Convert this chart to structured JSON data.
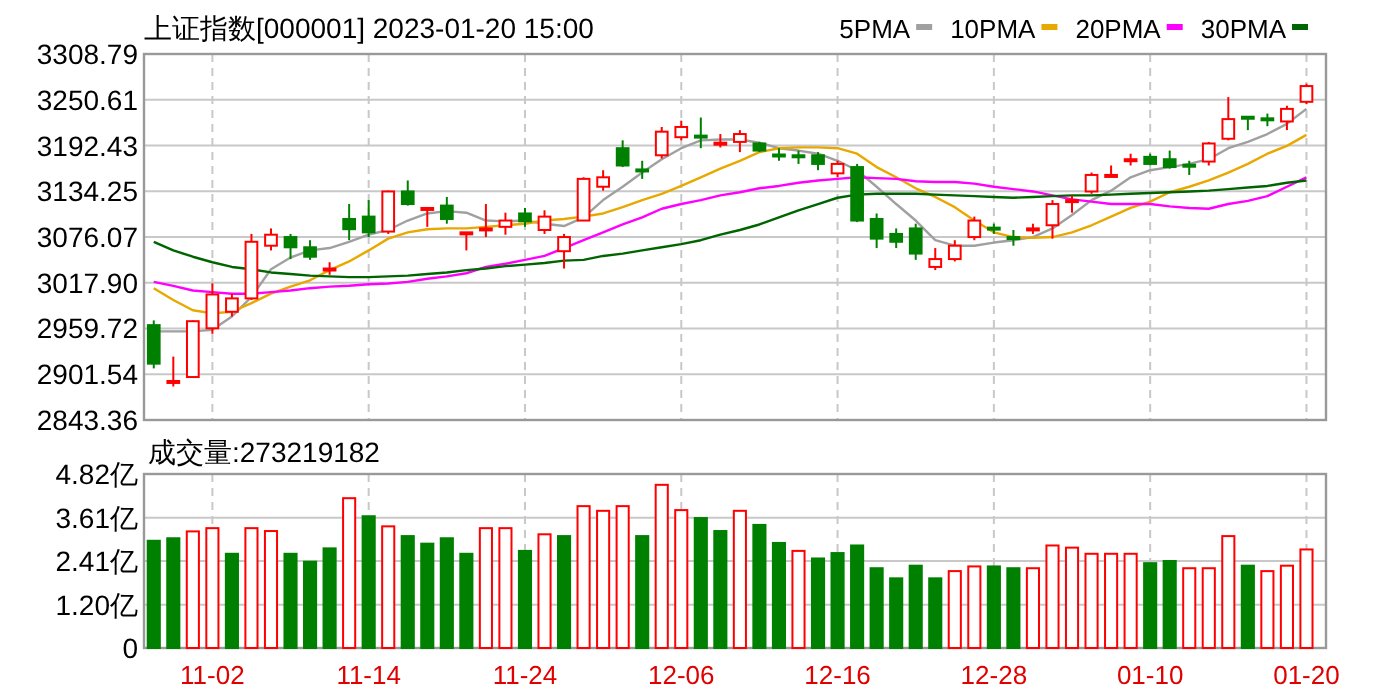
{
  "chart_data": [
    {
      "type": "candlestick",
      "title": "上证指数[000001] 2023-01-20 15:00",
      "categories": [
        null,
        null,
        null,
        null,
        null,
        null,
        null,
        null,
        null,
        null,
        null,
        null,
        null,
        null,
        null,
        null,
        null,
        null,
        null,
        null,
        null,
        null,
        null,
        null,
        null,
        null,
        null,
        null,
        null,
        null,
        null,
        null,
        null,
        null,
        null,
        null,
        null,
        null,
        null,
        null,
        null,
        null,
        null,
        null,
        null,
        null,
        null,
        null,
        null,
        null,
        null,
        null,
        null,
        null,
        null,
        null,
        null,
        null,
        null,
        null
      ],
      "ohlc": [
        [
          2964,
          2970,
          2909,
          2915
        ],
        [
          2893,
          2924,
          2886,
          2893
        ],
        [
          2898,
          2970,
          2897,
          2969
        ],
        [
          2960,
          3017,
          2953,
          3003
        ],
        [
          2981,
          3004,
          2975,
          2998
        ],
        [
          2998,
          3080,
          2996,
          3070
        ],
        [
          3065,
          3087,
          3059,
          3079
        ],
        [
          3076,
          3080,
          3048,
          3063
        ],
        [
          3063,
          3072,
          3047,
          3051
        ],
        [
          3036,
          3044,
          3028,
          3036
        ],
        [
          3099,
          3118,
          3072,
          3086
        ],
        [
          3102,
          3123,
          3076,
          3082
        ],
        [
          3083,
          3135,
          3080,
          3134
        ],
        [
          3134,
          3148,
          3116,
          3118
        ],
        [
          3113,
          3113,
          3089,
          3113
        ],
        [
          3116,
          3127,
          3093,
          3099
        ],
        [
          3082,
          3082,
          3059,
          3082
        ],
        [
          3087,
          3118,
          3076,
          3087
        ],
        [
          3089,
          3107,
          3079,
          3097
        ],
        [
          3106,
          3113,
          3089,
          3096
        ],
        [
          3085,
          3110,
          3080,
          3102
        ],
        [
          3058,
          3080,
          3036,
          3076
        ],
        [
          3097,
          3152,
          3097,
          3150
        ],
        [
          3140,
          3161,
          3135,
          3152
        ],
        [
          3189,
          3199,
          3165,
          3167
        ],
        [
          3162,
          3173,
          3150,
          3161
        ],
        [
          3180,
          3216,
          3176,
          3210
        ],
        [
          3203,
          3224,
          3199,
          3216
        ],
        [
          3205,
          3228,
          3189,
          3203
        ],
        [
          3196,
          3207,
          3190,
          3196
        ],
        [
          3197,
          3212,
          3184,
          3207
        ],
        [
          3195,
          3197,
          3184,
          3186
        ],
        [
          3181,
          3189,
          3173,
          3180
        ],
        [
          3180,
          3186,
          3169,
          3179
        ],
        [
          3180,
          3184,
          3161,
          3169
        ],
        [
          3157,
          3173,
          3152,
          3169
        ],
        [
          3165,
          3169,
          3095,
          3097
        ],
        [
          3099,
          3106,
          3062,
          3074
        ],
        [
          3080,
          3087,
          3062,
          3070
        ],
        [
          3087,
          3093,
          3047,
          3055
        ],
        [
          3038,
          3062,
          3034,
          3048
        ],
        [
          3048,
          3072,
          3045,
          3065
        ],
        [
          3076,
          3102,
          3072,
          3097
        ],
        [
          3088,
          3093,
          3080,
          3086
        ],
        [
          3076,
          3085,
          3065,
          3074
        ],
        [
          3087,
          3093,
          3080,
          3087
        ],
        [
          3091,
          3123,
          3074,
          3118
        ],
        [
          3123,
          3129,
          3107,
          3123
        ],
        [
          3134,
          3158,
          3131,
          3155
        ],
        [
          3155,
          3167,
          3155,
          3155
        ],
        [
          3175,
          3182,
          3167,
          3175
        ],
        [
          3178,
          3182,
          3167,
          3169
        ],
        [
          3175,
          3186,
          3163,
          3165
        ],
        [
          3168,
          3173,
          3155,
          3167
        ],
        [
          3172,
          3197,
          3167,
          3195
        ],
        [
          3201,
          3254,
          3199,
          3226
        ],
        [
          3229,
          3229,
          3212,
          3228
        ],
        [
          3227,
          3233,
          3217,
          3226
        ],
        [
          3223,
          3243,
          3212,
          3239
        ],
        [
          3248,
          3271,
          3245,
          3268
        ]
      ],
      "series": [
        {
          "name": "5PMA",
          "type": "line",
          "color": "#a0a0a0",
          "values": [
            2956,
            2956,
            2956,
            2958,
            2975,
            3000,
            3035,
            3050,
            3059,
            3062,
            3070,
            3079,
            3085,
            3097,
            3106,
            3109,
            3107,
            3097,
            3096,
            3097,
            3093,
            3090,
            3101,
            3123,
            3140,
            3158,
            3175,
            3189,
            3199,
            3200,
            3200,
            3196,
            3189,
            3186,
            3182,
            3173,
            3161,
            3140,
            3118,
            3097,
            3072,
            3065,
            3065,
            3069,
            3072,
            3076,
            3087,
            3104,
            3123,
            3135,
            3152,
            3161,
            3165,
            3169,
            3175,
            3189,
            3197,
            3207,
            3220,
            3239
          ]
        },
        {
          "name": "10PMA",
          "type": "line",
          "color": "#e8a800",
          "values": [
            3011,
            2996,
            2983,
            2979,
            2981,
            2992,
            3004,
            3013,
            3021,
            3034,
            3045,
            3059,
            3074,
            3082,
            3086,
            3087,
            3087,
            3089,
            3091,
            3093,
            3097,
            3099,
            3102,
            3106,
            3114,
            3123,
            3131,
            3141,
            3152,
            3163,
            3173,
            3184,
            3189,
            3190,
            3190,
            3189,
            3182,
            3165,
            3152,
            3138,
            3127,
            3114,
            3097,
            3082,
            3076,
            3075,
            3076,
            3082,
            3091,
            3102,
            3113,
            3121,
            3133,
            3140,
            3148,
            3158,
            3169,
            3182,
            3192,
            3206
          ]
        },
        {
          "name": "20PMA",
          "type": "line",
          "color": "#ff00ff",
          "values": [
            3019,
            3014,
            3008,
            3006,
            3004,
            3004,
            3006,
            3008,
            3011,
            3013,
            3014,
            3016,
            3017,
            3019,
            3023,
            3026,
            3030,
            3038,
            3042,
            3047,
            3052,
            3062,
            3072,
            3082,
            3092,
            3101,
            3112,
            3118,
            3123,
            3129,
            3133,
            3138,
            3141,
            3145,
            3148,
            3150,
            3152,
            3151,
            3150,
            3147,
            3146,
            3146,
            3144,
            3140,
            3137,
            3134,
            3129,
            3124,
            3121,
            3118,
            3118,
            3118,
            3115,
            3113,
            3112,
            3118,
            3122,
            3128,
            3140,
            3152
          ]
        },
        {
          "name": "30PMA",
          "type": "line",
          "color": "#006400",
          "values": [
            3070,
            3059,
            3051,
            3044,
            3038,
            3035,
            3031,
            3029,
            3027,
            3026,
            3025,
            3025,
            3026,
            3027,
            3029,
            3031,
            3034,
            3036,
            3039,
            3041,
            3043,
            3046,
            3047,
            3052,
            3055,
            3059,
            3063,
            3067,
            3072,
            3079,
            3085,
            3092,
            3101,
            3110,
            3118,
            3126,
            3130,
            3131,
            3131,
            3131,
            3130,
            3129,
            3128,
            3127,
            3126,
            3127,
            3128,
            3129,
            3129,
            3130,
            3131,
            3132,
            3133,
            3134,
            3135,
            3137,
            3139,
            3141,
            3145,
            3148
          ]
        }
      ],
      "ylim": [
        2843.36,
        3308.79
      ],
      "yticks": [
        2843.36,
        2901.54,
        2959.72,
        {
          "value": 3017.9,
          "label": "3017.90"
        },
        3076.07,
        3134.25,
        3192.43,
        3250.61,
        3308.79
      ],
      "grid": true,
      "legend": "top right",
      "tick_labels": "y"
    },
    {
      "type": "bar",
      "title": "成交量:273219182",
      "categories": [
        null,
        null,
        null,
        "11-02",
        null,
        null,
        null,
        null,
        null,
        null,
        null,
        "11-14",
        null,
        null,
        null,
        null,
        null,
        null,
        null,
        "11-24",
        null,
        null,
        null,
        null,
        null,
        null,
        null,
        "12-06",
        null,
        null,
        null,
        null,
        null,
        null,
        null,
        "12-16",
        null,
        null,
        null,
        null,
        null,
        null,
        null,
        "12-28",
        null,
        null,
        null,
        null,
        null,
        null,
        null,
        "01-10",
        null,
        null,
        null,
        null,
        null,
        null,
        null,
        "01-20"
      ],
      "values": [
        2.97,
        3.04,
        3.23,
        3.32,
        2.61,
        3.32,
        3.24,
        2.61,
        2.39,
        2.76,
        4.15,
        3.65,
        3.37,
        3.1,
        2.89,
        3.04,
        2.61,
        3.32,
        3.32,
        2.69,
        3.15,
        3.1,
        3.93,
        3.8,
        3.93,
        3.1,
        4.52,
        3.82,
        3.6,
        3.24,
        3.8,
        3.41,
        2.91,
        2.69,
        2.48,
        2.63,
        2.84,
        2.21,
        1.93,
        2.28,
        1.93,
        2.13,
        2.26,
        2.26,
        2.21,
        2.21,
        2.84,
        2.78,
        2.61,
        2.61,
        2.61,
        2.35,
        2.41,
        2.21,
        2.21,
        3.1,
        2.28,
        2.13,
        2.28,
        2.73
      ],
      "colors": [
        "#008000",
        "#008000",
        "#ff0000",
        "#ff0000",
        "#008000",
        "#ff0000",
        "#ff0000",
        "#008000",
        "#008000",
        "#008000",
        "#ff0000",
        "#008000",
        "#ff0000",
        "#008000",
        "#008000",
        "#008000",
        "#008000",
        "#ff0000",
        "#ff0000",
        "#008000",
        "#ff0000",
        "#008000",
        "#ff0000",
        "#ff0000",
        "#ff0000",
        "#008000",
        "#ff0000",
        "#ff0000",
        "#008000",
        "#008000",
        "#ff0000",
        "#008000",
        "#008000",
        "#ff0000",
        "#008000",
        "#008000",
        "#008000",
        "#008000",
        "#008000",
        "#008000",
        "#008000",
        "#ff0000",
        "#ff0000",
        "#008000",
        "#008000",
        "#ff0000",
        "#ff0000",
        "#ff0000",
        "#ff0000",
        "#ff0000",
        "#ff0000",
        "#008000",
        "#008000",
        "#ff0000",
        "#ff0000",
        "#ff0000",
        "#008000",
        "#ff0000",
        "#ff0000",
        "#ff0000"
      ],
      "ylim": [
        0,
        4.82
      ],
      "yticks": [
        0,
        {
          "value": 1.2,
          "label": "1.20亿"
        },
        {
          "value": 2.41,
          "label": "2.41亿"
        },
        {
          "value": 3.61,
          "label": "3.61亿"
        },
        {
          "value": 4.82,
          "label": "4.82亿"
        }
      ],
      "grid": true
    }
  ]
}
